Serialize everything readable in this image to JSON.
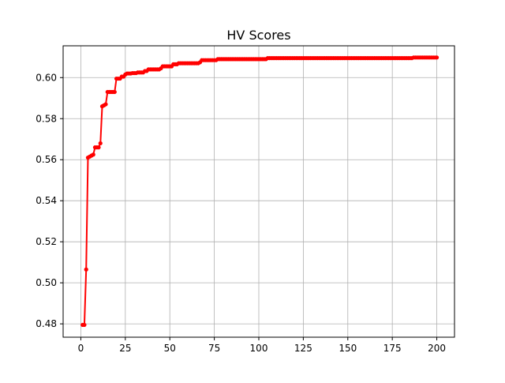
{
  "chart_data": {
    "type": "line",
    "title": "HV Scores",
    "xlabel": "",
    "ylabel": "",
    "xlim": [
      -9.95,
      209.95
    ],
    "ylim": [
      0.4735,
      0.6155
    ],
    "x_ticks": [
      0,
      25,
      50,
      75,
      100,
      125,
      150,
      175,
      200
    ],
    "y_ticks": [
      0.48,
      0.5,
      0.52,
      0.54,
      0.56,
      0.58,
      0.6
    ],
    "y_tick_labels": [
      "0.48",
      "0.50",
      "0.52",
      "0.54",
      "0.56",
      "0.58",
      "0.60"
    ],
    "grid": true,
    "legend": "none",
    "series": [
      {
        "color": "#ff0000",
        "marker": "dot",
        "steps": [
          [
            1,
            0.4795
          ],
          [
            2,
            0.4795
          ],
          [
            3,
            0.5065
          ],
          [
            4,
            0.561
          ],
          [
            5,
            0.5615
          ],
          [
            6,
            0.562
          ],
          [
            7,
            0.5625
          ],
          [
            8,
            0.566
          ],
          [
            10,
            0.566
          ],
          [
            11,
            0.568
          ],
          [
            12,
            0.586
          ],
          [
            13,
            0.5865
          ],
          [
            14,
            0.587
          ],
          [
            15,
            0.593
          ],
          [
            19,
            0.593
          ],
          [
            20,
            0.5995
          ],
          [
            22,
            0.5995
          ],
          [
            23,
            0.6005
          ],
          [
            25,
            0.6015
          ],
          [
            26,
            0.602
          ],
          [
            29,
            0.6022
          ],
          [
            32,
            0.6025
          ],
          [
            36,
            0.6032
          ],
          [
            38,
            0.604
          ],
          [
            45,
            0.6045
          ],
          [
            46,
            0.6055
          ],
          [
            52,
            0.6065
          ],
          [
            55,
            0.607
          ],
          [
            67,
            0.6075
          ],
          [
            68,
            0.6085
          ],
          [
            76,
            0.6085
          ],
          [
            77,
            0.609
          ],
          [
            104,
            0.609
          ],
          [
            105,
            0.6095
          ],
          [
            186,
            0.6095
          ],
          [
            187,
            0.6098
          ],
          [
            200,
            0.6098
          ]
        ]
      }
    ]
  }
}
